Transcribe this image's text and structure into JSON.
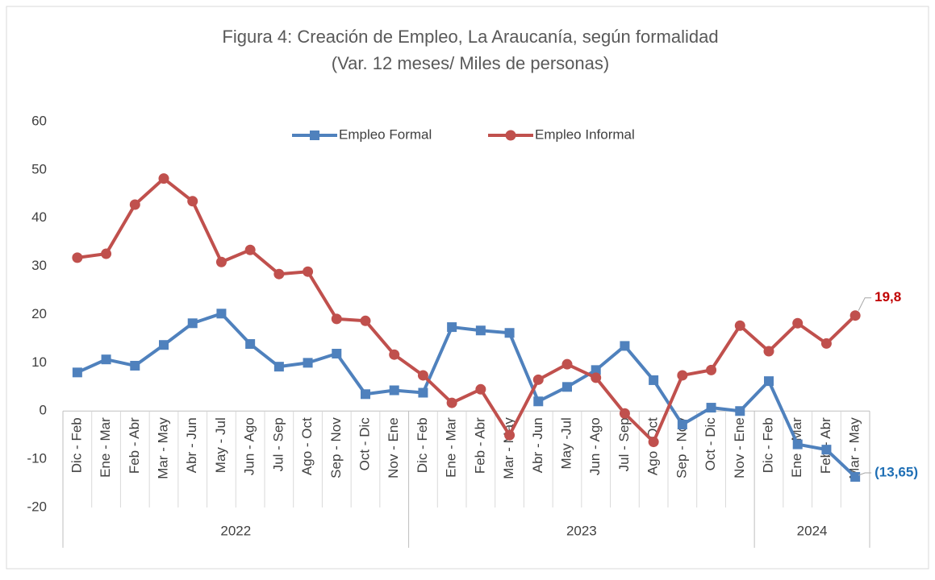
{
  "chart_data": {
    "type": "line",
    "title": "Figura 4: Creación de Empleo, La Araucanía, según formalidad",
    "subtitle": "(Var. 12 meses/ Miles de personas)",
    "groups": [
      {
        "label": "2022",
        "categories": [
          "Dic - Feb",
          "Ene - Mar",
          "Feb - Abr",
          "Mar - May",
          "Abr - Jun",
          "May - Jul",
          "Jun - Ago",
          "Jul - Sep",
          "Ago - Oct",
          "Sep - Nov",
          "Oct - Dic",
          "Nov - Ene"
        ]
      },
      {
        "label": "2023",
        "categories": [
          "Dic - Feb",
          "Ene - Mar",
          "Feb - Abr",
          "Mar - May",
          "Abr - Jun",
          "May -Jul",
          "Jun - Ago",
          "Jul - Sep",
          "Ago - Oct",
          "Sep - Nov",
          "Oct - Dic",
          "Nov - Ene"
        ]
      },
      {
        "label": "2024",
        "categories": [
          "Dic - Feb",
          "Ene - Mar",
          "Feb - Abr",
          "Mar - May"
        ]
      }
    ],
    "series": [
      {
        "name": "Empleo Formal",
        "color": "#4f81bd",
        "marker": "square",
        "values": [
          8.0,
          10.7,
          9.4,
          13.7,
          18.2,
          20.2,
          13.9,
          9.2,
          10.0,
          11.9,
          3.5,
          4.3,
          3.8,
          17.4,
          16.7,
          16.2,
          2.0,
          5.0,
          8.5,
          13.5,
          6.4,
          -2.8,
          0.7,
          0.0,
          6.2,
          -6.9,
          -8.0,
          -13.65
        ],
        "value_labels": [
          null,
          null,
          null,
          null,
          null,
          null,
          null,
          null,
          null,
          null,
          null,
          null,
          null,
          null,
          null,
          null,
          null,
          null,
          null,
          null,
          null,
          null,
          null,
          null,
          null,
          null,
          null,
          "(13,65)"
        ],
        "label_color": "#1f6fb5"
      },
      {
        "name": "Empleo Informal",
        "color": "#c0504d",
        "marker": "circle",
        "values": [
          31.8,
          32.6,
          42.8,
          48.2,
          43.5,
          30.9,
          33.4,
          28.4,
          28.9,
          19.1,
          18.7,
          11.7,
          7.4,
          1.7,
          4.5,
          -5.0,
          6.5,
          9.7,
          6.9,
          -0.5,
          -6.4,
          7.4,
          8.5,
          17.7,
          12.4,
          18.2,
          14.0,
          19.8
        ],
        "value_labels": [
          null,
          null,
          null,
          null,
          null,
          null,
          null,
          null,
          null,
          null,
          null,
          null,
          null,
          null,
          null,
          null,
          null,
          null,
          null,
          null,
          null,
          null,
          null,
          null,
          null,
          null,
          null,
          "19,8"
        ],
        "label_color": "#c00000"
      }
    ],
    "ylim": [
      -20,
      60
    ],
    "yticks": [
      -20,
      -10,
      0,
      10,
      20,
      30,
      40,
      50,
      60
    ],
    "grid": false,
    "legend": "top"
  }
}
